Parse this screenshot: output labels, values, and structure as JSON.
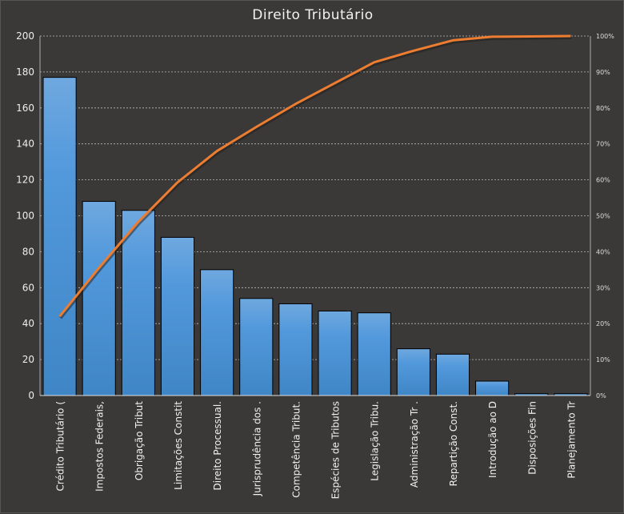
{
  "chart_data": {
    "type": "bar",
    "title": "Direito Tributário",
    "categories": [
      "Crédito Tributário (",
      "Impostos Federais,",
      "Obrigação Tribut",
      "Limitações Constit",
      "Direito Processual.",
      "Jurisprudência dos .",
      "Competência Tribut.",
      "Espécies de Tributos",
      "Legislação Tribu.",
      "Administração Tr .",
      "Repartição Const.",
      "Introdução  ao D",
      "Disposições Fin",
      "Planejamento Tr"
    ],
    "series": [
      {
        "name": "Count",
        "type": "bar",
        "axis": "left",
        "values": [
          177,
          108,
          103,
          88,
          70,
          54,
          51,
          47,
          46,
          26,
          23,
          8,
          1,
          1
        ]
      },
      {
        "name": "Cumulative %",
        "type": "line",
        "axis": "right",
        "values": [
          22.0,
          35.5,
          48.3,
          59.3,
          68.0,
          74.7,
          81.1,
          86.9,
          92.7,
          95.9,
          98.8,
          99.8,
          99.9,
          100
        ]
      }
    ],
    "ylim": [
      0,
      200
    ],
    "yticks": [
      "0",
      "20",
      "40",
      "60",
      "80",
      "100",
      "120",
      "140",
      "160",
      "180",
      "200"
    ],
    "y2lim": [
      0,
      100
    ],
    "y2ticks": [
      "0%",
      "10%",
      "20%",
      "30%",
      "40%",
      "50%",
      "60%",
      "70%",
      "80%",
      "90%",
      "100%"
    ],
    "grid": true,
    "colors": {
      "bar": "#4a8fd2",
      "line": "#ed7d31"
    }
  }
}
